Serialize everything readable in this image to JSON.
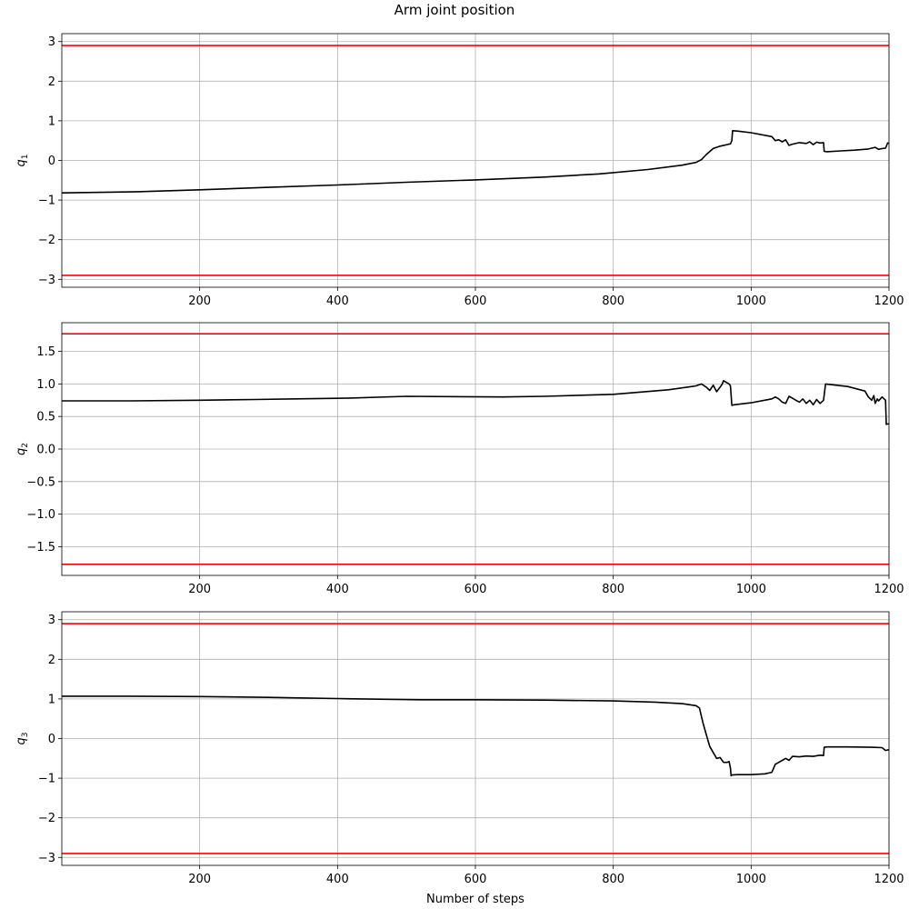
{
  "figure": {
    "title": "Arm joint position"
  },
  "chart_data": [
    {
      "type": "line",
      "ylabel_base": "q",
      "ylabel_sub": "1",
      "xlabel": "",
      "xlim": [
        0,
        1200
      ],
      "ylim": [
        -3.2,
        3.2
      ],
      "xticks": [
        200,
        400,
        600,
        800,
        1000,
        1200
      ],
      "yticks": [
        -3,
        -2,
        -1,
        0,
        1,
        2,
        3
      ],
      "ytick_labels": [
        "−3",
        "−2",
        "−1",
        "0",
        "1",
        "2",
        "3"
      ],
      "grid": true,
      "limits": [
        2.9,
        -2.9
      ],
      "limit_color": "#ff0000",
      "series": [
        {
          "color": "#000000",
          "x": [
            0,
            110,
            200,
            300,
            400,
            500,
            600,
            700,
            780,
            850,
            900,
            920,
            928,
            935,
            945,
            955,
            965,
            970,
            972,
            973,
            980,
            1000,
            1030,
            1035,
            1040,
            1045,
            1050,
            1055,
            1060,
            1070,
            1080,
            1085,
            1090,
            1095,
            1100,
            1105,
            1106,
            1110,
            1130,
            1150,
            1170,
            1180,
            1185,
            1190,
            1195,
            1198,
            1200
          ],
          "y": [
            -0.82,
            -0.79,
            -0.74,
            -0.68,
            -0.62,
            -0.55,
            -0.49,
            -0.42,
            -0.34,
            -0.23,
            -0.12,
            -0.05,
            0.02,
            0.15,
            0.3,
            0.36,
            0.4,
            0.42,
            0.5,
            0.75,
            0.74,
            0.7,
            0.6,
            0.5,
            0.52,
            0.47,
            0.52,
            0.38,
            0.41,
            0.45,
            0.43,
            0.47,
            0.4,
            0.46,
            0.44,
            0.45,
            0.23,
            0.22,
            0.24,
            0.26,
            0.29,
            0.33,
            0.28,
            0.3,
            0.31,
            0.44,
            0.43
          ]
        }
      ]
    },
    {
      "type": "line",
      "ylabel_base": "q",
      "ylabel_sub": "2",
      "xlabel": "",
      "xlim": [
        0,
        1200
      ],
      "ylim": [
        -1.94,
        1.94
      ],
      "xticks": [
        200,
        400,
        600,
        800,
        1000,
        1200
      ],
      "yticks": [
        -1.5,
        -1.0,
        -0.5,
        0.0,
        0.5,
        1.0,
        1.5
      ],
      "ytick_labels": [
        "−1.5",
        "−1.0",
        "−0.5",
        "0.0",
        "0.5",
        "1.0",
        "1.5"
      ],
      "grid": true,
      "limits": [
        1.77,
        -1.77
      ],
      "limit_color": "#ff0000",
      "series": [
        {
          "color": "#000000",
          "x": [
            0,
            100,
            200,
            280,
            340,
            410,
            500,
            640,
            700,
            800,
            880,
            920,
            928,
            935,
            940,
            945,
            950,
            955,
            958,
            960,
            968,
            970,
            972,
            975,
            1000,
            1030,
            1035,
            1040,
            1045,
            1050,
            1055,
            1060,
            1065,
            1070,
            1075,
            1080,
            1085,
            1090,
            1095,
            1100,
            1105,
            1108,
            1140,
            1165,
            1170,
            1175,
            1178,
            1180,
            1183,
            1185,
            1190,
            1195,
            1196,
            1200
          ],
          "y": [
            0.74,
            0.74,
            0.75,
            0.76,
            0.77,
            0.78,
            0.81,
            0.8,
            0.81,
            0.84,
            0.91,
            0.97,
            1.0,
            0.95,
            0.9,
            0.98,
            0.88,
            0.95,
            1.0,
            1.05,
            1.0,
            0.97,
            0.67,
            0.68,
            0.71,
            0.77,
            0.8,
            0.77,
            0.72,
            0.7,
            0.81,
            0.78,
            0.75,
            0.72,
            0.77,
            0.7,
            0.75,
            0.68,
            0.76,
            0.7,
            0.75,
            1.0,
            0.96,
            0.89,
            0.8,
            0.75,
            0.82,
            0.7,
            0.77,
            0.74,
            0.8,
            0.75,
            0.38,
            0.39
          ]
        }
      ]
    },
    {
      "type": "line",
      "ylabel_base": "q",
      "ylabel_sub": "3",
      "xlabel": "Number of steps",
      "xlim": [
        0,
        1200
      ],
      "ylim": [
        -3.2,
        3.2
      ],
      "xticks": [
        200,
        400,
        600,
        800,
        1000,
        1200
      ],
      "yticks": [
        -3,
        -2,
        -1,
        0,
        1,
        2,
        3
      ],
      "ytick_labels": [
        "−3",
        "−2",
        "−1",
        "0",
        "1",
        "2",
        "3"
      ],
      "grid": true,
      "limits": [
        2.9,
        -2.9
      ],
      "limit_color": "#ff0000",
      "series": [
        {
          "color": "#000000",
          "x": [
            0,
            100,
            200,
            300,
            400,
            520,
            600,
            700,
            800,
            860,
            900,
            920,
            925,
            930,
            935,
            940,
            945,
            950,
            955,
            960,
            965,
            968,
            970,
            971,
            972,
            980,
            1000,
            1020,
            1030,
            1035,
            1040,
            1045,
            1050,
            1055,
            1060,
            1070,
            1080,
            1090,
            1100,
            1105,
            1106,
            1110,
            1140,
            1175,
            1190,
            1195,
            1200
          ],
          "y": [
            1.07,
            1.07,
            1.06,
            1.04,
            1.01,
            0.98,
            0.98,
            0.97,
            0.95,
            0.92,
            0.88,
            0.83,
            0.77,
            0.4,
            0.1,
            -0.2,
            -0.35,
            -0.5,
            -0.48,
            -0.6,
            -0.6,
            -0.58,
            -0.75,
            -0.94,
            -0.92,
            -0.91,
            -0.91,
            -0.89,
            -0.85,
            -0.65,
            -0.6,
            -0.55,
            -0.5,
            -0.55,
            -0.45,
            -0.46,
            -0.44,
            -0.45,
            -0.42,
            -0.43,
            -0.22,
            -0.21,
            -0.21,
            -0.22,
            -0.23,
            -0.3,
            -0.28
          ]
        }
      ]
    }
  ]
}
